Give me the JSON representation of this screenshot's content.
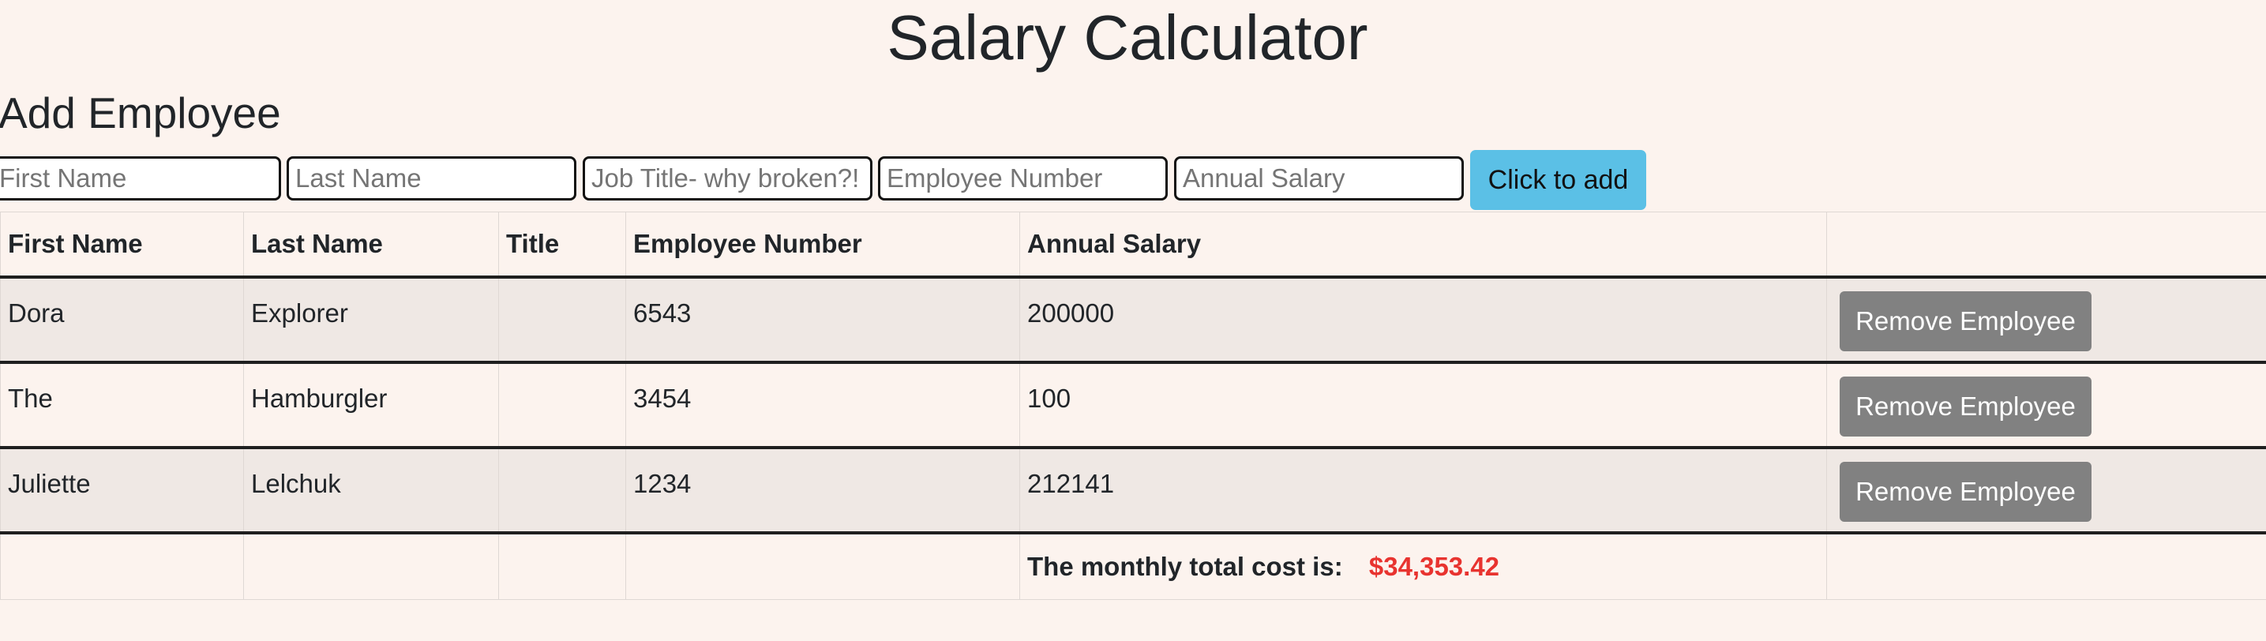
{
  "page": {
    "title": "Salary Calculator",
    "subtitle": "Add Employee"
  },
  "form": {
    "first_name_placeholder": "First Name",
    "last_name_placeholder": "Last Name",
    "job_title_placeholder": "Job Title- why broken?!",
    "employee_number_placeholder": "Employee Number",
    "annual_salary_placeholder": "Annual Salary",
    "first_name_value": "",
    "last_name_value": "",
    "job_title_value": "",
    "employee_number_value": "",
    "annual_salary_value": "",
    "add_button_label": "Click to add"
  },
  "table": {
    "headers": [
      "First Name",
      "Last Name",
      "Title",
      "Employee Number",
      "Annual Salary",
      ""
    ],
    "rows": [
      {
        "first_name": "Dora",
        "last_name": "Explorer",
        "title": "",
        "employee_number": "6543",
        "annual_salary": "200000",
        "action": "Remove Employee"
      },
      {
        "first_name": "The",
        "last_name": "Hamburgler",
        "title": "",
        "employee_number": "3454",
        "annual_salary": "100",
        "action": "Remove Employee"
      },
      {
        "first_name": "Juliette",
        "last_name": "Lelchuk",
        "title": "",
        "employee_number": "1234",
        "annual_salary": "212141",
        "action": "Remove Employee"
      }
    ],
    "footer": {
      "label": "The monthly total cost is:",
      "value": "$34,353.42"
    }
  },
  "colors": {
    "background": "#fcf3ee",
    "add_button": "#5bc0e6",
    "remove_button": "#818181",
    "total_value": "#e8332f",
    "striped_row": "#efe8e4"
  }
}
